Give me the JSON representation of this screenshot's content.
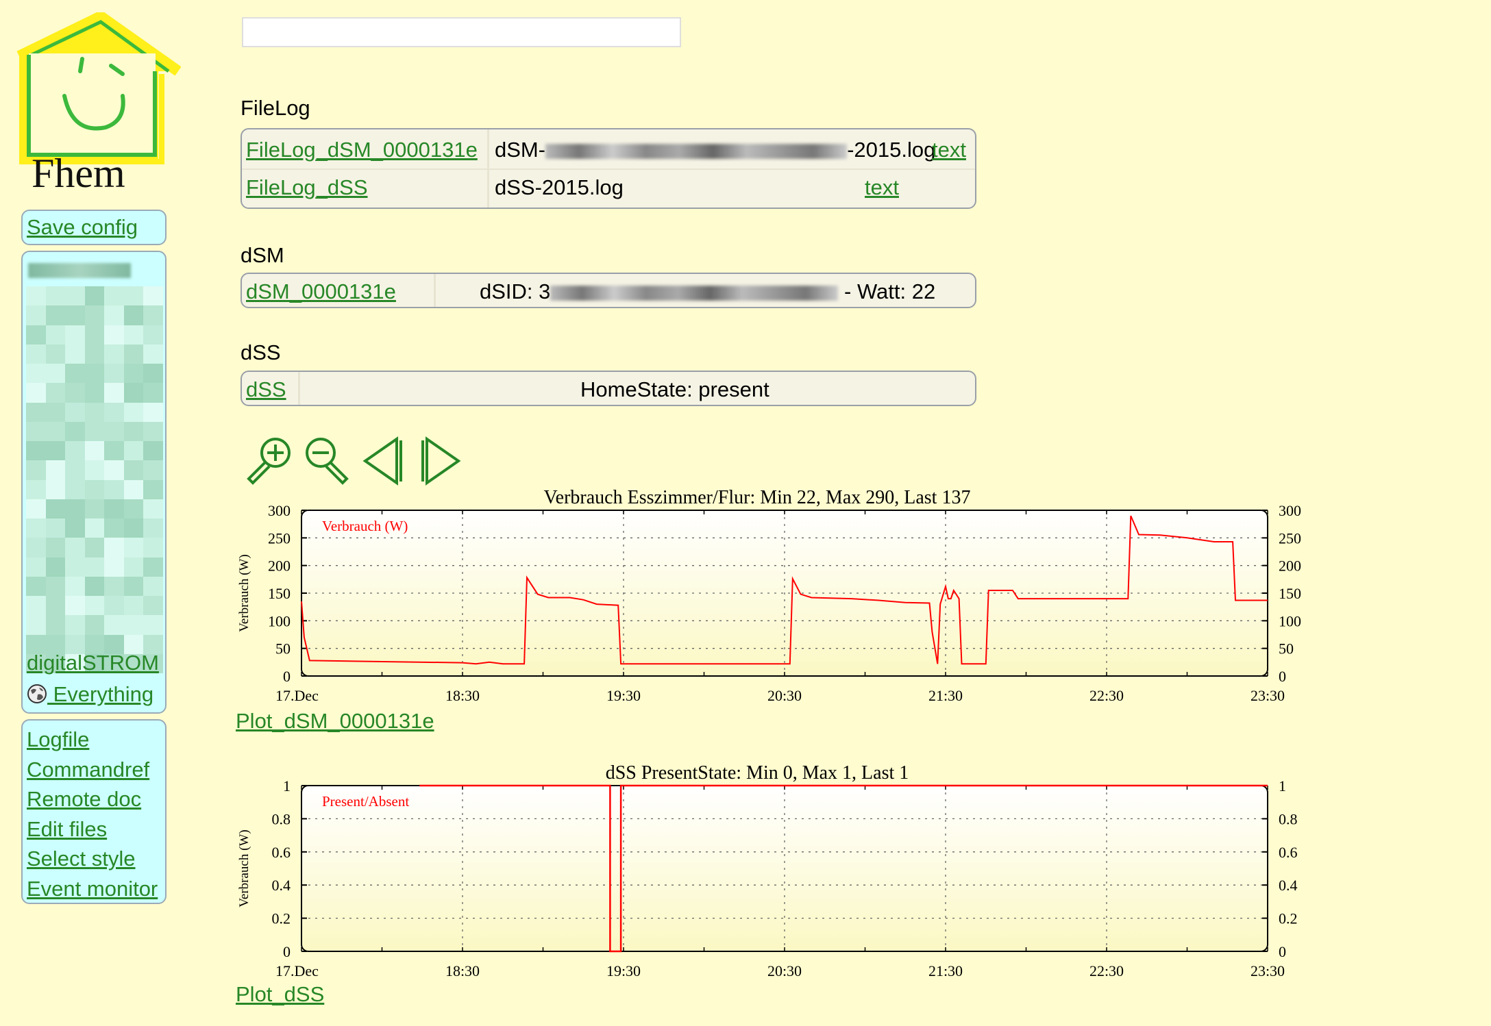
{
  "logo": {
    "text": "Fhem"
  },
  "menu": {
    "save_config": "Save config",
    "rooms": [
      {
        "label": "digitalSTROM"
      },
      {
        "label": " Everything",
        "icon": "globe-icon"
      }
    ],
    "links": [
      "Logfile",
      "Commandref",
      "Remote doc",
      "Edit files",
      "Select style",
      "Event monitor"
    ]
  },
  "search": {
    "value": ""
  },
  "groups": {
    "filelog": {
      "title": "FileLog",
      "rows": [
        {
          "name": "FileLog_dSM_0000131e",
          "file_prefix": "dSM-",
          "file_suffix": "-2015.log",
          "link": "text"
        },
        {
          "name": "FileLog_dSS",
          "file": "dSS-2015.log",
          "link": "text"
        }
      ]
    },
    "dsm": {
      "title": "dSM",
      "rows": [
        {
          "name": "dSM_0000131e",
          "state_prefix": "dSID: 3",
          "state_suffix": "- Watt: 22"
        }
      ]
    },
    "dss": {
      "title": "dSS",
      "rows": [
        {
          "name": "dSS",
          "state": "HomeState: present"
        }
      ]
    }
  },
  "plot_controls": [
    "zoom-in-icon",
    "zoom-out-icon",
    "prev-icon",
    "next-icon"
  ],
  "colors": {
    "accent": "#278727",
    "background": "#fffccf",
    "series": "#ff0000"
  },
  "chart_data": [
    {
      "type": "line",
      "title": "Verbrauch Esszimmer/Flur: Min 22, Max 290, Last 137",
      "ylabel": "Verbrauch (W)",
      "xlabel": "",
      "legend": "Verbrauch (W)",
      "legend_position": "top-left",
      "ylim": [
        0,
        300
      ],
      "yticks": [
        "0",
        "50",
        "100",
        "150",
        "200",
        "250",
        "300"
      ],
      "xlim": [
        "17:30",
        "23:30"
      ],
      "xticks": [
        "17.Dec",
        "18:30",
        "19:30",
        "20:30",
        "21:30",
        "22:30",
        "23:30"
      ],
      "grid": true,
      "series": [
        {
          "name": "Verbrauch (W)",
          "points": [
            [
              "17:30",
              135
            ],
            [
              "17:31",
              70
            ],
            [
              "17:33",
              28
            ],
            [
              "18:00",
              26
            ],
            [
              "18:30",
              24
            ],
            [
              "18:35",
              22
            ],
            [
              "18:40",
              25
            ],
            [
              "18:45",
              22
            ],
            [
              "18:50",
              22
            ],
            [
              "18:53",
              22
            ],
            [
              "18:54",
              178
            ],
            [
              "18:58",
              148
            ],
            [
              "19:02",
              142
            ],
            [
              "19:10",
              142
            ],
            [
              "19:15",
              138
            ],
            [
              "19:20",
              130
            ],
            [
              "19:28",
              128
            ],
            [
              "19:29",
              22
            ],
            [
              "20:20",
              22
            ],
            [
              "20:32",
              22
            ],
            [
              "20:33",
              176
            ],
            [
              "20:36",
              148
            ],
            [
              "20:40",
              142
            ],
            [
              "20:55",
              140
            ],
            [
              "21:05",
              137
            ],
            [
              "21:15",
              133
            ],
            [
              "21:24",
              132
            ],
            [
              "21:25",
              80
            ],
            [
              "21:27",
              22
            ],
            [
              "21:28",
              130
            ],
            [
              "21:30",
              162
            ],
            [
              "21:31",
              140
            ],
            [
              "21:32",
              140
            ],
            [
              "21:33",
              155
            ],
            [
              "21:35",
              140
            ],
            [
              "21:36",
              22
            ],
            [
              "21:45",
              22
            ],
            [
              "21:46",
              155
            ],
            [
              "21:55",
              155
            ],
            [
              "21:57",
              140
            ],
            [
              "22:10",
              140
            ],
            [
              "22:30",
              140
            ],
            [
              "22:38",
              140
            ],
            [
              "22:39",
              290
            ],
            [
              "22:42",
              256
            ],
            [
              "22:50",
              255
            ],
            [
              "23:00",
              250
            ],
            [
              "23:10",
              243
            ],
            [
              "23:17",
              243
            ],
            [
              "23:18",
              137
            ],
            [
              "23:30",
              137
            ]
          ]
        }
      ]
    },
    {
      "type": "line",
      "title": "dSS PresentState: Min 0, Max 1, Last 1",
      "ylabel": "Verbrauch (W)",
      "xlabel": "",
      "legend": "Present/Absent",
      "legend_position": "top-left",
      "ylim": [
        0,
        1
      ],
      "yticks": [
        "0",
        "0.2",
        "0.4",
        "0.6",
        "0.8",
        "1"
      ],
      "xlim": [
        "17:30",
        "23:30"
      ],
      "xticks": [
        "17.Dec",
        "18:30",
        "19:30",
        "20:30",
        "21:30",
        "22:30",
        "23:30"
      ],
      "grid": true,
      "series": [
        {
          "name": "Present/Absent",
          "points": [
            [
              "18:14",
              1
            ],
            [
              "19:25",
              1
            ],
            [
              "19:25",
              0
            ],
            [
              "19:29",
              0
            ],
            [
              "19:29",
              1
            ],
            [
              "23:30",
              1
            ]
          ]
        }
      ]
    }
  ],
  "plot_links": [
    "Plot_dSM_0000131e",
    "Plot_dSS"
  ]
}
